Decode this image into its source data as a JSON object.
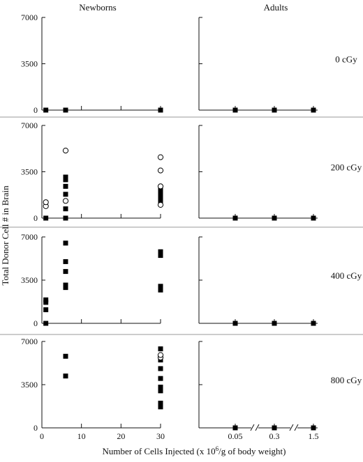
{
  "chart_data": {
    "type": "scatter",
    "column_titles": [
      "Newborns",
      "Adults"
    ],
    "ylabel": "Total Donor Cell # in Brain",
    "xlabel_main": "Number of Cells Injected (x 10",
    "xlabel_sup": "6",
    "xlabel_tail": "/g of body weight)",
    "ylim": [
      0,
      7000
    ],
    "yticks": [
      0,
      3500,
      7000
    ],
    "ytick_labels": [
      "0",
      "3500",
      "7000"
    ],
    "newborn_xlim": [
      0,
      30
    ],
    "newborn_xticks": [
      0,
      10,
      20,
      30
    ],
    "newborn_xtick_labels": [
      "0",
      "10",
      "20",
      "30"
    ],
    "adult_categories": [
      "0.05",
      "0.3",
      "1.5"
    ],
    "legend_note": "filled square and open circle markers (unlabeled)",
    "rows": [
      {
        "dose": "0 cGy",
        "newborn": {
          "filled": [
            {
              "x": 1,
              "y": 0
            },
            {
              "x": 6,
              "y": 0
            },
            {
              "x": 30,
              "y": 0
            }
          ],
          "open": []
        },
        "adult": {
          "filled": [
            0,
            0,
            0
          ]
        }
      },
      {
        "dose": "200 cGy",
        "newborn": {
          "filled": [
            {
              "x": 1,
              "y": 0
            },
            {
              "x": 6,
              "y": 0
            },
            {
              "x": 6,
              "y": 700
            },
            {
              "x": 6,
              "y": 1800
            },
            {
              "x": 6,
              "y": 2400
            },
            {
              "x": 6,
              "y": 2900
            },
            {
              "x": 6,
              "y": 3100
            },
            {
              "x": 30,
              "y": 1200
            },
            {
              "x": 30,
              "y": 1400
            },
            {
              "x": 30,
              "y": 1600
            },
            {
              "x": 30,
              "y": 1800
            },
            {
              "x": 30,
              "y": 2000
            },
            {
              "x": 30,
              "y": 2200
            }
          ],
          "open": [
            {
              "x": 1,
              "y": 900
            },
            {
              "x": 1,
              "y": 1200
            },
            {
              "x": 6,
              "y": 1300
            },
            {
              "x": 6,
              "y": 5100
            },
            {
              "x": 30,
              "y": 1000
            },
            {
              "x": 30,
              "y": 2400
            },
            {
              "x": 30,
              "y": 3600
            },
            {
              "x": 30,
              "y": 4600
            }
          ]
        },
        "adult": {
          "filled": [
            0,
            0,
            0
          ]
        }
      },
      {
        "dose": "400 cGy",
        "newborn": {
          "filled": [
            {
              "x": 1,
              "y": 0
            },
            {
              "x": 1,
              "y": 1100
            },
            {
              "x": 1,
              "y": 1700
            },
            {
              "x": 1,
              "y": 1900
            },
            {
              "x": 6,
              "y": 2900
            },
            {
              "x": 6,
              "y": 3100
            },
            {
              "x": 6,
              "y": 4200
            },
            {
              "x": 6,
              "y": 5000
            },
            {
              "x": 6,
              "y": 6500
            },
            {
              "x": 30,
              "y": 2700
            },
            {
              "x": 30,
              "y": 2900
            },
            {
              "x": 30,
              "y": 3000
            },
            {
              "x": 30,
              "y": 5500
            },
            {
              "x": 30,
              "y": 5800
            }
          ],
          "open": []
        },
        "adult": {
          "filled": [
            0,
            0,
            0
          ]
        }
      },
      {
        "dose": "800 cGy",
        "newborn": {
          "filled": [
            {
              "x": 6,
              "y": 4200
            },
            {
              "x": 6,
              "y": 5800
            },
            {
              "x": 30,
              "y": 1700
            },
            {
              "x": 30,
              "y": 2000
            },
            {
              "x": 30,
              "y": 3000
            },
            {
              "x": 30,
              "y": 3300
            },
            {
              "x": 30,
              "y": 4000
            },
            {
              "x": 30,
              "y": 4800
            },
            {
              "x": 30,
              "y": 5500
            },
            {
              "x": 30,
              "y": 6400
            }
          ],
          "open": [
            {
              "x": 30,
              "y": 5700
            },
            {
              "x": 30,
              "y": 5900
            }
          ]
        },
        "adult": {
          "filled": [
            0,
            0,
            0
          ]
        }
      }
    ]
  }
}
